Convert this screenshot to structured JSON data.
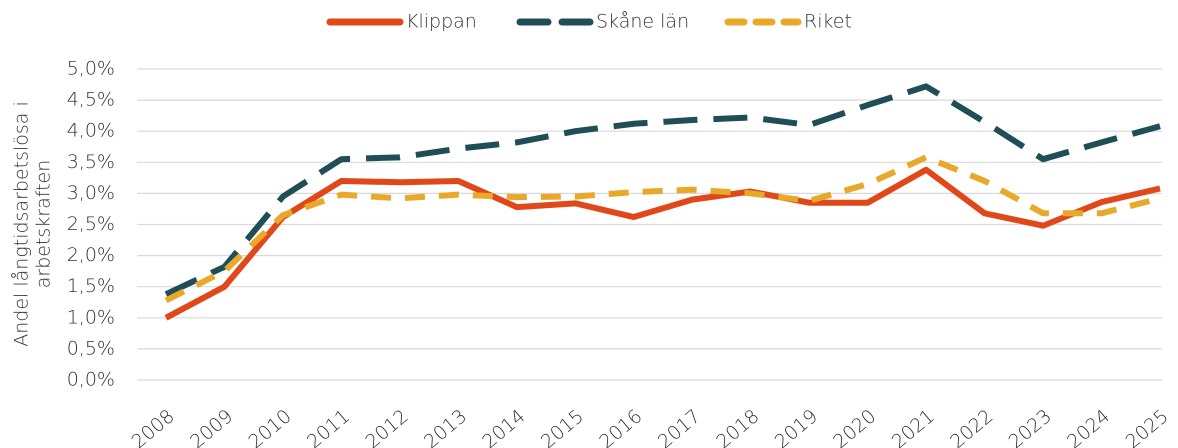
{
  "chart_data": {
    "type": "line",
    "ylabel": [
      "Andel långtidsarbetslösa i",
      "arbetskraften"
    ],
    "categories": [
      "2008",
      "2009",
      "2010",
      "2011",
      "2012",
      "2013",
      "2014",
      "2015",
      "2016",
      "2017",
      "2018",
      "2019",
      "2020",
      "2021",
      "2022",
      "2023",
      "2024",
      "2025"
    ],
    "series": [
      {
        "name": "Klippan",
        "color": "#e0481a",
        "dash": "solid",
        "values": [
          1.0,
          1.5,
          2.62,
          3.2,
          3.18,
          3.2,
          2.78,
          2.84,
          2.62,
          2.9,
          3.03,
          2.85,
          2.85,
          3.38,
          2.68,
          2.48,
          2.86,
          3.08
        ]
      },
      {
        "name": "Skåne län",
        "color": "#1f4e57",
        "dash": "long",
        "values": [
          1.38,
          1.82,
          2.95,
          3.55,
          3.58,
          3.72,
          3.82,
          4.0,
          4.12,
          4.18,
          4.22,
          4.1,
          4.42,
          4.72,
          4.15,
          3.55,
          3.82,
          4.08
        ]
      },
      {
        "name": "Riket",
        "color": "#e8a92a",
        "dash": "short",
        "values": [
          1.28,
          1.75,
          2.65,
          2.98,
          2.92,
          2.98,
          2.94,
          2.95,
          3.02,
          3.06,
          3.0,
          2.88,
          3.15,
          3.58,
          3.2,
          2.68,
          2.68,
          2.92
        ]
      }
    ],
    "ylim": [
      0,
      5
    ],
    "yticks": [
      {
        "value": 0,
        "label": "0,0%"
      },
      {
        "value": 0.5,
        "label": "0,5%"
      },
      {
        "value": 1,
        "label": "1,0%"
      },
      {
        "value": 1.5,
        "label": "1,5%"
      },
      {
        "value": 2,
        "label": "2,0%"
      },
      {
        "value": 2.5,
        "label": "2,5%"
      },
      {
        "value": 3,
        "label": "3,0%"
      },
      {
        "value": 3.5,
        "label": "3,5%"
      },
      {
        "value": 4,
        "label": "4,0%"
      },
      {
        "value": 4.5,
        "label": "4,5%"
      },
      {
        "value": 5,
        "label": "5,0%"
      }
    ],
    "grid": true,
    "legend": "top"
  }
}
